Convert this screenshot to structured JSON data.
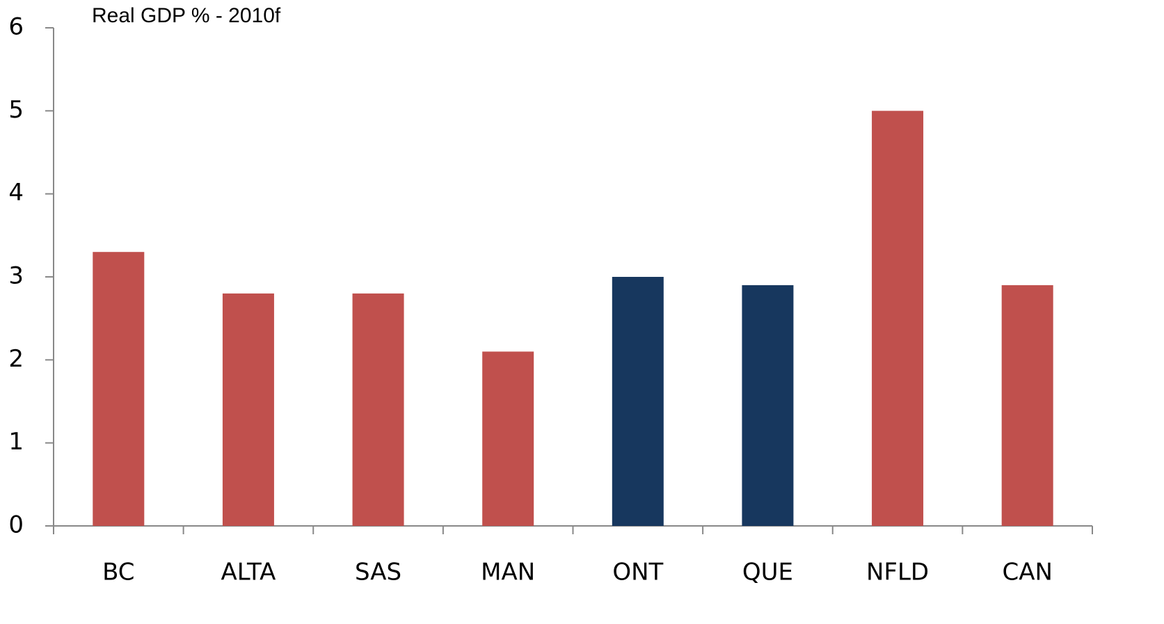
{
  "chart_data": {
    "type": "bar",
    "title": "Real GDP % - 2010f",
    "categories": [
      "BC",
      "ALTA",
      "SAS",
      "MAN",
      "ONT",
      "QUE",
      "NFLD",
      "CAN"
    ],
    "values": [
      3.3,
      2.8,
      2.8,
      2.1,
      3.0,
      2.9,
      5.0,
      2.9
    ],
    "colors": [
      "#c0504d",
      "#c0504d",
      "#c0504d",
      "#c0504d",
      "#17375e",
      "#17375e",
      "#c0504d",
      "#c0504d"
    ],
    "ylim": [
      0,
      6
    ],
    "yticks": [
      0,
      1,
      2,
      3,
      4,
      5,
      6
    ],
    "grid": false
  }
}
